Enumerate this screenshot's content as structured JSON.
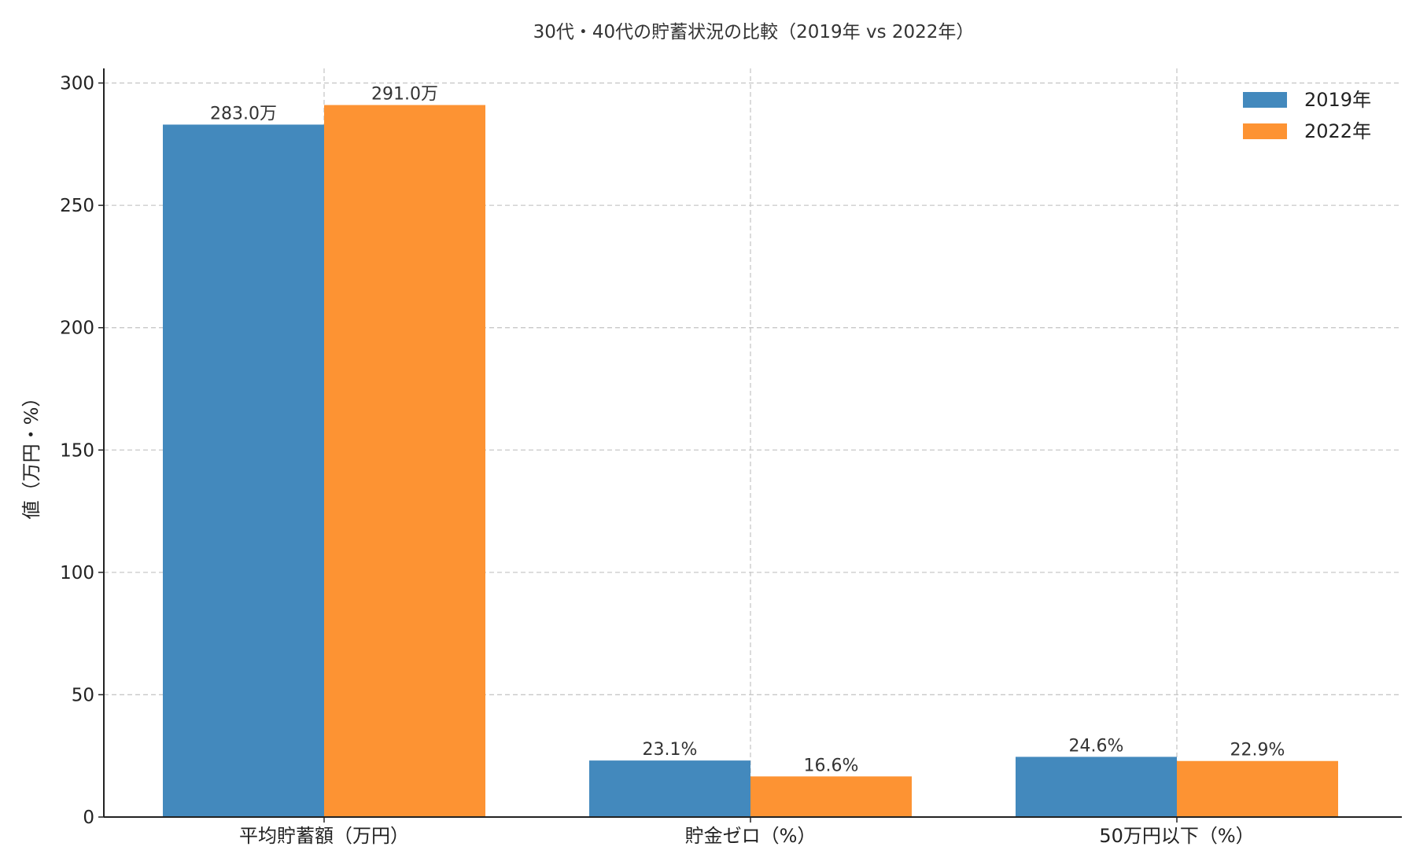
{
  "chart_data": {
    "type": "bar",
    "title": "30代・40代の貯蓄状況の比較（2019年 vs 2022年）",
    "xlabel": "",
    "ylabel": "値（万円・%）",
    "categories": [
      "平均貯蓄額（万円）",
      "貯金ゼロ（%）",
      "50万円以下（%）"
    ],
    "series": [
      {
        "name": "2019年",
        "color": "#4389bd",
        "values": [
          283.0,
          23.1,
          24.6
        ],
        "labels": [
          "283.0万",
          "23.1%",
          "24.6%"
        ]
      },
      {
        "name": "2022年",
        "color": "#fd9333",
        "values": [
          291.0,
          16.6,
          22.9
        ],
        "labels": [
          "291.0万",
          "16.6%",
          "22.9%"
        ]
      }
    ],
    "ylim": [
      0,
      305
    ],
    "yticks": [
      0,
      50,
      100,
      150,
      200,
      250,
      300
    ],
    "grid": true,
    "legend_position": "top-right"
  }
}
